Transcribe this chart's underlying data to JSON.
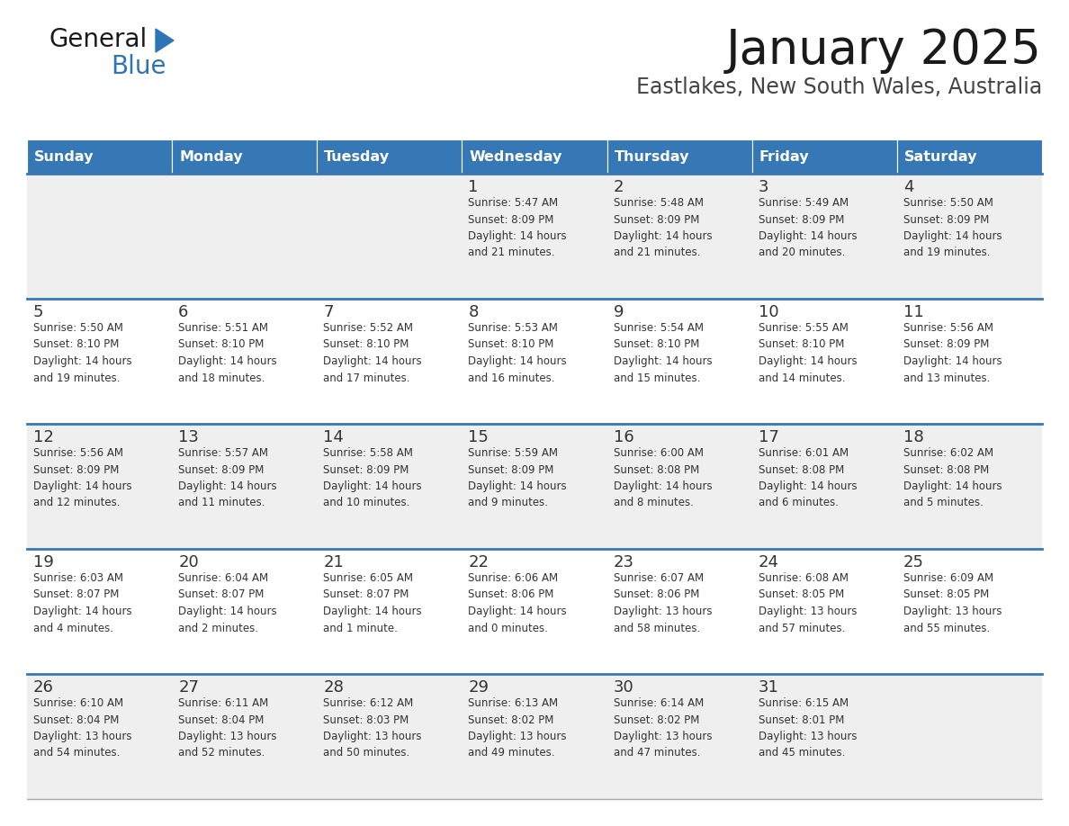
{
  "title": "January 2025",
  "subtitle": "Eastlakes, New South Wales, Australia",
  "header_color": "#3578b5",
  "header_text_color": "#ffffff",
  "row_bg_light": "#efefef",
  "row_bg_white": "#ffffff",
  "separator_color": "#3578b5",
  "text_color": "#333333",
  "days_of_week": [
    "Sunday",
    "Monday",
    "Tuesday",
    "Wednesday",
    "Thursday",
    "Friday",
    "Saturday"
  ],
  "weeks": [
    [
      {
        "day": "",
        "info": ""
      },
      {
        "day": "",
        "info": ""
      },
      {
        "day": "",
        "info": ""
      },
      {
        "day": "1",
        "info": "Sunrise: 5:47 AM\nSunset: 8:09 PM\nDaylight: 14 hours\nand 21 minutes."
      },
      {
        "day": "2",
        "info": "Sunrise: 5:48 AM\nSunset: 8:09 PM\nDaylight: 14 hours\nand 21 minutes."
      },
      {
        "day": "3",
        "info": "Sunrise: 5:49 AM\nSunset: 8:09 PM\nDaylight: 14 hours\nand 20 minutes."
      },
      {
        "day": "4",
        "info": "Sunrise: 5:50 AM\nSunset: 8:09 PM\nDaylight: 14 hours\nand 19 minutes."
      }
    ],
    [
      {
        "day": "5",
        "info": "Sunrise: 5:50 AM\nSunset: 8:10 PM\nDaylight: 14 hours\nand 19 minutes."
      },
      {
        "day": "6",
        "info": "Sunrise: 5:51 AM\nSunset: 8:10 PM\nDaylight: 14 hours\nand 18 minutes."
      },
      {
        "day": "7",
        "info": "Sunrise: 5:52 AM\nSunset: 8:10 PM\nDaylight: 14 hours\nand 17 minutes."
      },
      {
        "day": "8",
        "info": "Sunrise: 5:53 AM\nSunset: 8:10 PM\nDaylight: 14 hours\nand 16 minutes."
      },
      {
        "day": "9",
        "info": "Sunrise: 5:54 AM\nSunset: 8:10 PM\nDaylight: 14 hours\nand 15 minutes."
      },
      {
        "day": "10",
        "info": "Sunrise: 5:55 AM\nSunset: 8:10 PM\nDaylight: 14 hours\nand 14 minutes."
      },
      {
        "day": "11",
        "info": "Sunrise: 5:56 AM\nSunset: 8:09 PM\nDaylight: 14 hours\nand 13 minutes."
      }
    ],
    [
      {
        "day": "12",
        "info": "Sunrise: 5:56 AM\nSunset: 8:09 PM\nDaylight: 14 hours\nand 12 minutes."
      },
      {
        "day": "13",
        "info": "Sunrise: 5:57 AM\nSunset: 8:09 PM\nDaylight: 14 hours\nand 11 minutes."
      },
      {
        "day": "14",
        "info": "Sunrise: 5:58 AM\nSunset: 8:09 PM\nDaylight: 14 hours\nand 10 minutes."
      },
      {
        "day": "15",
        "info": "Sunrise: 5:59 AM\nSunset: 8:09 PM\nDaylight: 14 hours\nand 9 minutes."
      },
      {
        "day": "16",
        "info": "Sunrise: 6:00 AM\nSunset: 8:08 PM\nDaylight: 14 hours\nand 8 minutes."
      },
      {
        "day": "17",
        "info": "Sunrise: 6:01 AM\nSunset: 8:08 PM\nDaylight: 14 hours\nand 6 minutes."
      },
      {
        "day": "18",
        "info": "Sunrise: 6:02 AM\nSunset: 8:08 PM\nDaylight: 14 hours\nand 5 minutes."
      }
    ],
    [
      {
        "day": "19",
        "info": "Sunrise: 6:03 AM\nSunset: 8:07 PM\nDaylight: 14 hours\nand 4 minutes."
      },
      {
        "day": "20",
        "info": "Sunrise: 6:04 AM\nSunset: 8:07 PM\nDaylight: 14 hours\nand 2 minutes."
      },
      {
        "day": "21",
        "info": "Sunrise: 6:05 AM\nSunset: 8:07 PM\nDaylight: 14 hours\nand 1 minute."
      },
      {
        "day": "22",
        "info": "Sunrise: 6:06 AM\nSunset: 8:06 PM\nDaylight: 14 hours\nand 0 minutes."
      },
      {
        "day": "23",
        "info": "Sunrise: 6:07 AM\nSunset: 8:06 PM\nDaylight: 13 hours\nand 58 minutes."
      },
      {
        "day": "24",
        "info": "Sunrise: 6:08 AM\nSunset: 8:05 PM\nDaylight: 13 hours\nand 57 minutes."
      },
      {
        "day": "25",
        "info": "Sunrise: 6:09 AM\nSunset: 8:05 PM\nDaylight: 13 hours\nand 55 minutes."
      }
    ],
    [
      {
        "day": "26",
        "info": "Sunrise: 6:10 AM\nSunset: 8:04 PM\nDaylight: 13 hours\nand 54 minutes."
      },
      {
        "day": "27",
        "info": "Sunrise: 6:11 AM\nSunset: 8:04 PM\nDaylight: 13 hours\nand 52 minutes."
      },
      {
        "day": "28",
        "info": "Sunrise: 6:12 AM\nSunset: 8:03 PM\nDaylight: 13 hours\nand 50 minutes."
      },
      {
        "day": "29",
        "info": "Sunrise: 6:13 AM\nSunset: 8:02 PM\nDaylight: 13 hours\nand 49 minutes."
      },
      {
        "day": "30",
        "info": "Sunrise: 6:14 AM\nSunset: 8:02 PM\nDaylight: 13 hours\nand 47 minutes."
      },
      {
        "day": "31",
        "info": "Sunrise: 6:15 AM\nSunset: 8:01 PM\nDaylight: 13 hours\nand 45 minutes."
      },
      {
        "day": "",
        "info": ""
      }
    ]
  ],
  "logo_triangle_color": "#2e75b6",
  "fig_width": 11.88,
  "fig_height": 9.18,
  "dpi": 100
}
